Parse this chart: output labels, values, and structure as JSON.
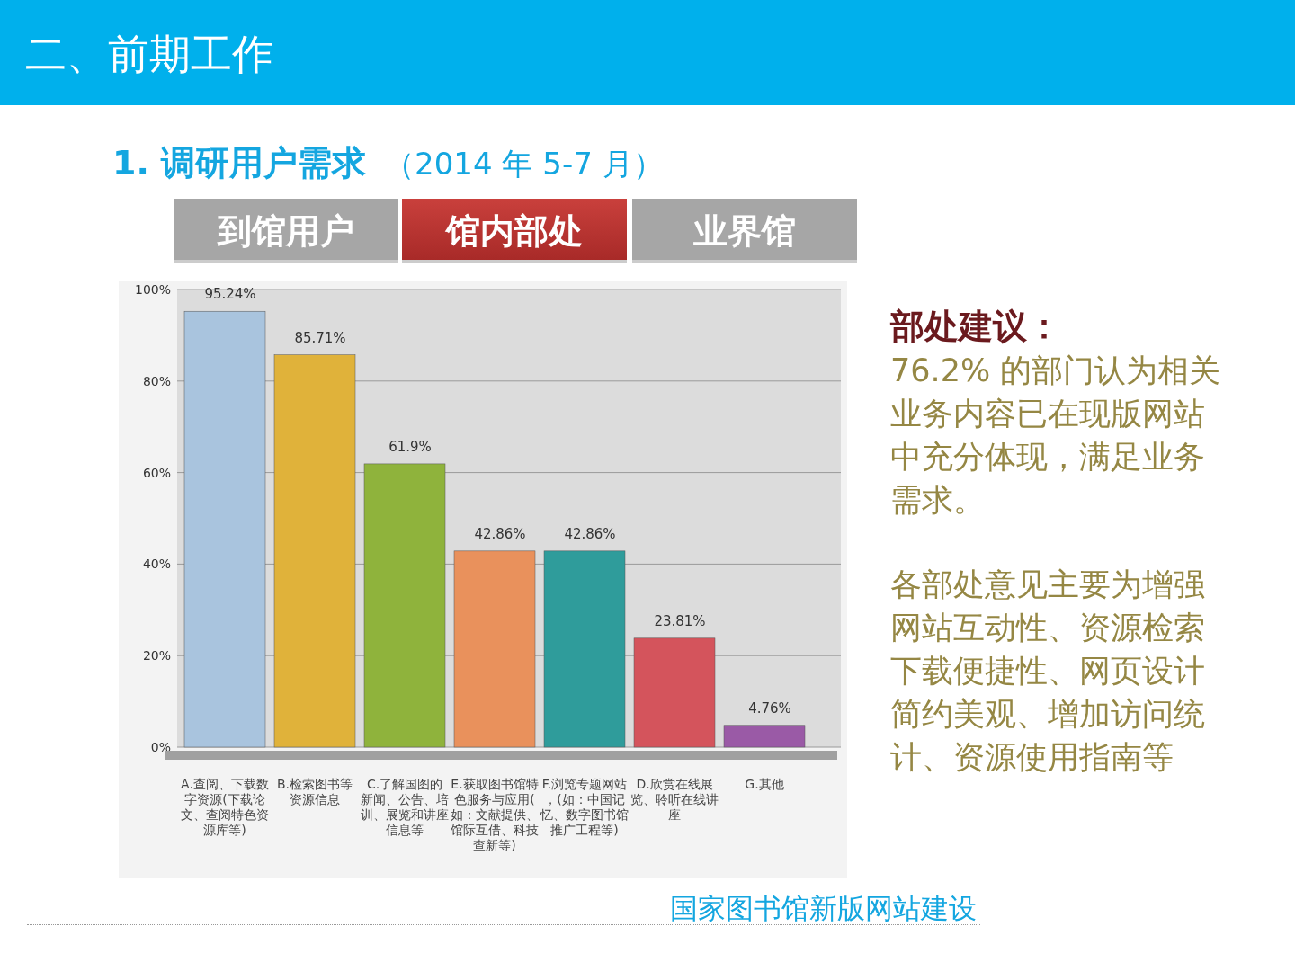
{
  "chart_data": {
    "type": "bar",
    "title": "二、前期工作",
    "subtitle": "1.  调研用户需求",
    "categories": [
      "A.查阅、下载数字资源(下载论文、查阅特色资源库等)",
      "B.检索图书等资源信息",
      "C.了解国图的新闻、公告、培训、展览和讲座信息等",
      "E.获取图书馆特色服务与应用(如：文献提供、馆际互借、科技查新等)",
      "F.浏览专题网站，(如：中国记忆、数字图书馆推广工程等)",
      "D.欣赏在线展览、聆听在线讲座",
      "G.其他"
    ],
    "values": [
      95.24,
      85.71,
      61.9,
      42.86,
      42.86,
      23.81,
      4.76
    ],
    "colors": [
      "#a9c4de",
      "#e0b23a",
      "#8fb33c",
      "#e9915c",
      "#2f9c9b",
      "#d4545c",
      "#9a5aa6"
    ],
    "value_labels": [
      "95.24%",
      "85.71%",
      "61.9%",
      "42.86%",
      "42.86%",
      "23.81%",
      "4.76%"
    ],
    "ylim": [
      0,
      100
    ],
    "yticks": [
      {
        "value": 0,
        "label": "0%"
      },
      {
        "value": 20,
        "label": "20%"
      },
      {
        "value": 40,
        "label": "40%"
      },
      {
        "value": 60,
        "label": "60%"
      },
      {
        "value": 80,
        "label": "80%"
      },
      {
        "value": 100,
        "label": "100%"
      }
    ],
    "grid": "y",
    "annotations": [
      "（2014 年 5-7 月）",
      "到馆用户",
      "馆内部处",
      "业界馆",
      "部处建议：",
      "76.2% 的部门认为相关业务内容已在现版网站中充分体现，满足业务需求。",
      "各部处意见主要为增强网站互动性、资源检索下载便捷性、网页设计简约美观、增加访问统计、资源使用指南等",
      "国家图书馆新版网站建设"
    ]
  }
}
